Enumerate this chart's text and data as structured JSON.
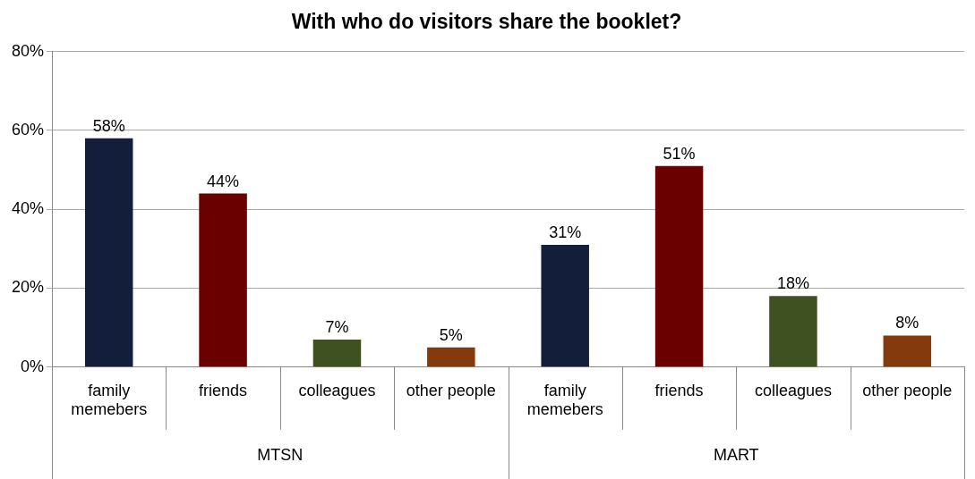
{
  "chart_data": {
    "type": "bar",
    "title": "With who do visitors share the booklet?",
    "categories": [
      "family memebers",
      "friends",
      "colleagues",
      "other people",
      "family memebers",
      "friends",
      "colleagues",
      "other people"
    ],
    "values": [
      58,
      44,
      7,
      5,
      31,
      51,
      18,
      8
    ],
    "colors": [
      "#131e3a",
      "#6b0000",
      "#3f5121",
      "#843a0c",
      "#131e3a",
      "#6b0000",
      "#3f5121",
      "#843a0c"
    ],
    "value_labels": [
      "58%",
      "44%",
      "7%",
      "5%",
      "31%",
      "51%",
      "18%",
      "8%"
    ],
    "ylim": [
      0,
      80
    ],
    "yticks": [
      {
        "value": 0,
        "label": "0%"
      },
      {
        "value": 20,
        "label": "20%"
      },
      {
        "value": 40,
        "label": "40%"
      },
      {
        "value": 60,
        "label": "60%"
      },
      {
        "value": 80,
        "label": "80%"
      }
    ],
    "annotations": [
      "MTSN",
      "MART"
    ],
    "grid": "y",
    "legend": false
  }
}
